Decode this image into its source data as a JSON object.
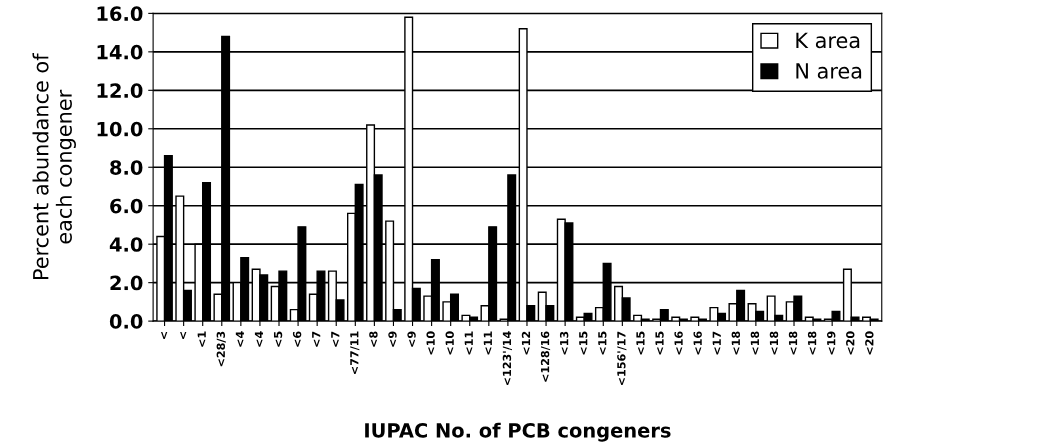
{
  "chart_data": {
    "type": "bar",
    "xlabel": "IUPAC No. of PCB congeners",
    "ylabel": "Percent abundance of\neach congener",
    "categories": [
      "<",
      "<",
      "<1",
      "<28/3",
      "<4",
      "<4",
      "<5",
      "<6",
      "<7",
      "<7",
      "<77/11",
      "<8",
      "<9",
      "<9",
      "<10",
      "<10",
      "<11",
      "<11",
      "<123'/14",
      "<12",
      "<128/16",
      "<13",
      "<15",
      "<15",
      "<156'/17",
      "<15",
      "<15",
      "<16",
      "<16",
      "<17",
      "<18",
      "<18",
      "<18",
      "<18",
      "<18",
      "<19",
      "<20",
      "<20"
    ],
    "series": [
      {
        "name": "K area",
        "color": "#ffffff",
        "values": [
          4.4,
          6.5,
          4.0,
          1.4,
          2.0,
          2.7,
          1.8,
          0.6,
          1.4,
          2.6,
          5.6,
          10.2,
          5.2,
          15.8,
          1.3,
          1.0,
          0.3,
          0.8,
          0.1,
          15.2,
          1.5,
          5.3,
          0.2,
          0.7,
          1.8,
          0.3,
          0.1,
          0.2,
          0.2,
          0.7,
          0.9,
          0.9,
          1.3,
          1.0,
          0.2,
          0.1,
          2.7,
          0.2
        ]
      },
      {
        "name": "N area",
        "color": "#000000",
        "values": [
          8.6,
          1.6,
          7.2,
          14.8,
          3.3,
          2.4,
          2.6,
          4.9,
          2.6,
          1.1,
          7.1,
          7.6,
          0.6,
          1.7,
          3.2,
          1.4,
          0.2,
          4.9,
          7.6,
          0.8,
          0.8,
          5.1,
          0.4,
          3.0,
          1.2,
          0.1,
          0.6,
          0.1,
          0.1,
          0.4,
          1.6,
          0.5,
          0.3,
          1.3,
          0.1,
          0.5,
          0.2,
          0.1
        ]
      }
    ],
    "ylim": [
      0,
      16
    ],
    "yticks": [
      {
        "value": 0,
        "label": "0.0"
      },
      {
        "value": 2,
        "label": "2.0"
      },
      {
        "value": 4,
        "label": "4.0"
      },
      {
        "value": 6,
        "label": "6.0"
      },
      {
        "value": 8,
        "label": "8.0"
      },
      {
        "value": 10,
        "label": "10.0"
      },
      {
        "value": 12,
        "label": "12.0"
      },
      {
        "value": 14,
        "label": "14.0"
      },
      {
        "value": 16,
        "label": "16.0"
      }
    ],
    "grid": "y",
    "legend": "top right"
  }
}
